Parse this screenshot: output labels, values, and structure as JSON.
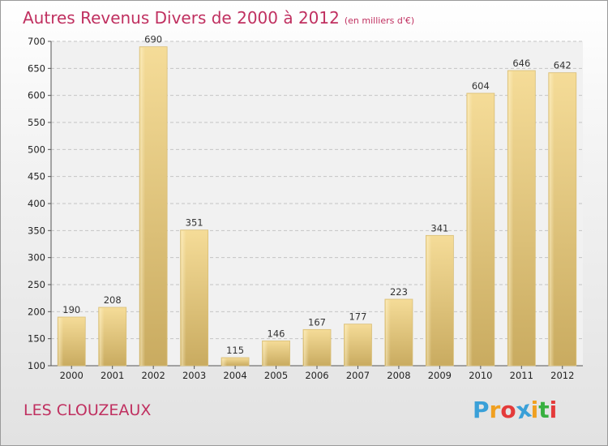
{
  "chart_data": {
    "type": "bar",
    "title": "Autres Revenus Divers de 2000 à 2012",
    "unit": "(en milliers d'€)",
    "categories": [
      "2000",
      "2001",
      "2002",
      "2003",
      "2004",
      "2005",
      "2006",
      "2007",
      "2008",
      "2009",
      "2010",
      "2011",
      "2012"
    ],
    "values": [
      190,
      208,
      690,
      351,
      115,
      146,
      167,
      177,
      223,
      341,
      604,
      646,
      642
    ],
    "ylim": [
      100,
      700
    ],
    "yticks": [
      100,
      150,
      200,
      250,
      300,
      350,
      400,
      450,
      500,
      550,
      600,
      650,
      700
    ],
    "xlabel": "",
    "ylabel": "",
    "grid": true,
    "bar_color": "#e8cf86"
  },
  "footer": {
    "place": "LES CLOUZEAUX",
    "logo_letters": [
      "P",
      "r",
      "o",
      "x",
      "i",
      "t",
      "i"
    ],
    "logo_colors": [
      "#3aa0d8",
      "#f0a020",
      "#e43a3a",
      "#3aa0d8",
      "#f0a020",
      "#38b040",
      "#e43a3a"
    ]
  }
}
